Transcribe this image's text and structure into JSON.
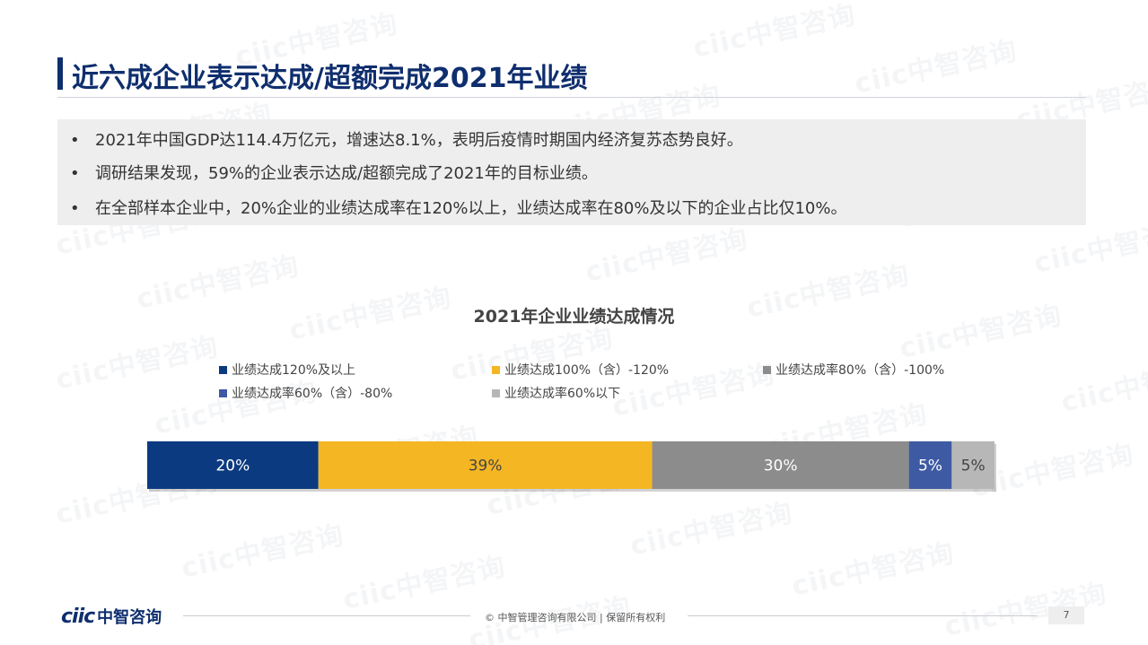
{
  "title": "近六成企业表示达成/超额完成2021年业绩",
  "bullets": [
    "2021年中国GDP达114.4万亿元，增速达8.1%，表明后疫情时期国内经济复苏态势良好。",
    "调研结果发现，59%的企业表示达成/超额完成了2021年的目标业绩。",
    "在全部样本企业中，20%企业的业绩达成率在120%以上，业绩达成率在80%及以下的企业占比仅10%。"
  ],
  "bullet_marker": "•",
  "chart_data": {
    "type": "bar",
    "orientation": "horizontal",
    "stacked": true,
    "percent_stacked": true,
    "title": "2021年企业业绩达成情况",
    "legend_position": "top",
    "series": [
      {
        "name": "业绩达成120%及以上",
        "value": 20,
        "label": "20%",
        "color": "#0b3a80",
        "label_color": "#ffffff"
      },
      {
        "name": "业绩达成100%（含）-120%",
        "value": 39,
        "label": "39%",
        "color": "#f4b623",
        "label_color": "#444444"
      },
      {
        "name": "业绩达成率80%（含）-100%",
        "value": 30,
        "label": "30%",
        "color": "#8c8c8c",
        "label_color": "#ffffff"
      },
      {
        "name": "业绩达成率60%（含）-80%",
        "value": 5,
        "label": "5%",
        "color": "#3e5aa3",
        "label_color": "#ffffff"
      },
      {
        "name": "业绩达成率60%以下",
        "value": 5,
        "label": "5%",
        "color": "#b7b7b7",
        "label_color": "#444444"
      }
    ]
  },
  "watermark_text": "ciic中智咨询",
  "footer": {
    "copyright": "© 中智管理咨询有限公司 | 保留所有权利",
    "page_number": "7",
    "logo_mark": "ciic",
    "logo_cn": "中智咨询"
  }
}
